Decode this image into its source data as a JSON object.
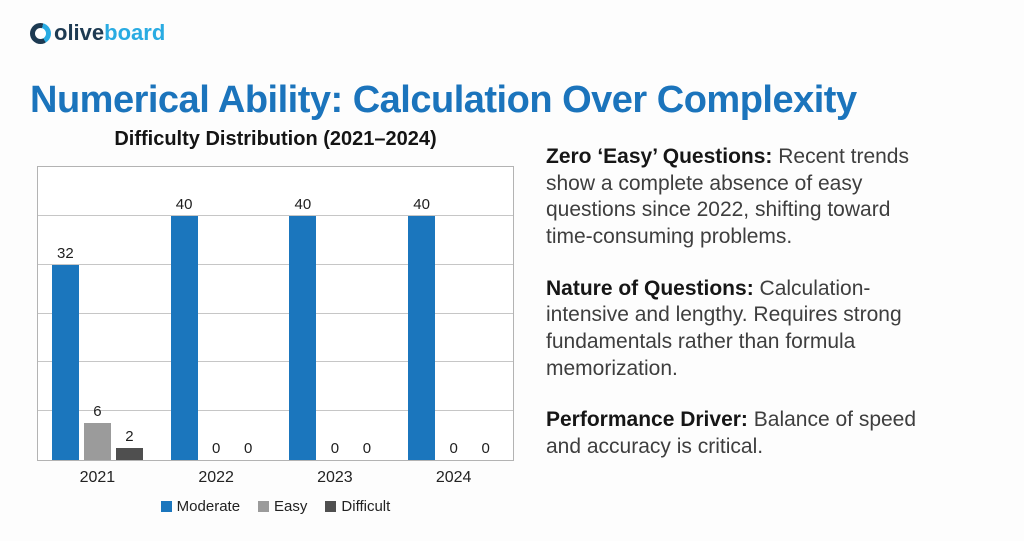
{
  "logo": {
    "icon": "oliveboard-logo-icon",
    "olive": "olive",
    "board": "board"
  },
  "page_title": "Numerical Ability: Calculation Over Complexity",
  "chart_data": {
    "type": "bar",
    "title": "Difficulty Distribution (2021–2024)",
    "categories": [
      "2021",
      "2022",
      "2023",
      "2024"
    ],
    "series": [
      {
        "name": "Moderate",
        "color": "#1b76bd",
        "values": [
          32,
          40,
          40,
          40
        ]
      },
      {
        "name": "Easy",
        "color": "#9b9b9b",
        "values": [
          6,
          0,
          0,
          0
        ]
      },
      {
        "name": "Difficult",
        "color": "#4f4f4f",
        "values": [
          2,
          0,
          0,
          0
        ]
      }
    ],
    "xlabel": "",
    "ylabel": "",
    "ylim": [
      0,
      48
    ],
    "grid_step": 8,
    "grid": "horizontal-only",
    "y_tick_labels_shown": false,
    "value_labels_shown": true,
    "legend_position": "bottom"
  },
  "insights": [
    {
      "label": "Zero ‘Easy’ Questions:",
      "text": " Recent trends show a complete absence of easy questions since 2022, shifting toward time-consuming problems."
    },
    {
      "label": "Nature of Questions:",
      "text": " Calculation-intensive and lengthy. Requires strong fundamentals rather than formula memorization."
    },
    {
      "label": "Performance Driver:",
      "text": " Balance of speed and accuracy is critical."
    }
  ],
  "colors": {
    "accent_blue": "#1b74bc",
    "logo_navy": "#1d3a52",
    "logo_blue": "#29abe2",
    "chart_title_dark": "#141414",
    "body_text": "#3e3e3e",
    "bold_text": "#161616",
    "grid_line": "#c6c6c6",
    "plot_border": "#b3b3b3",
    "background": "#fdfdfd"
  }
}
